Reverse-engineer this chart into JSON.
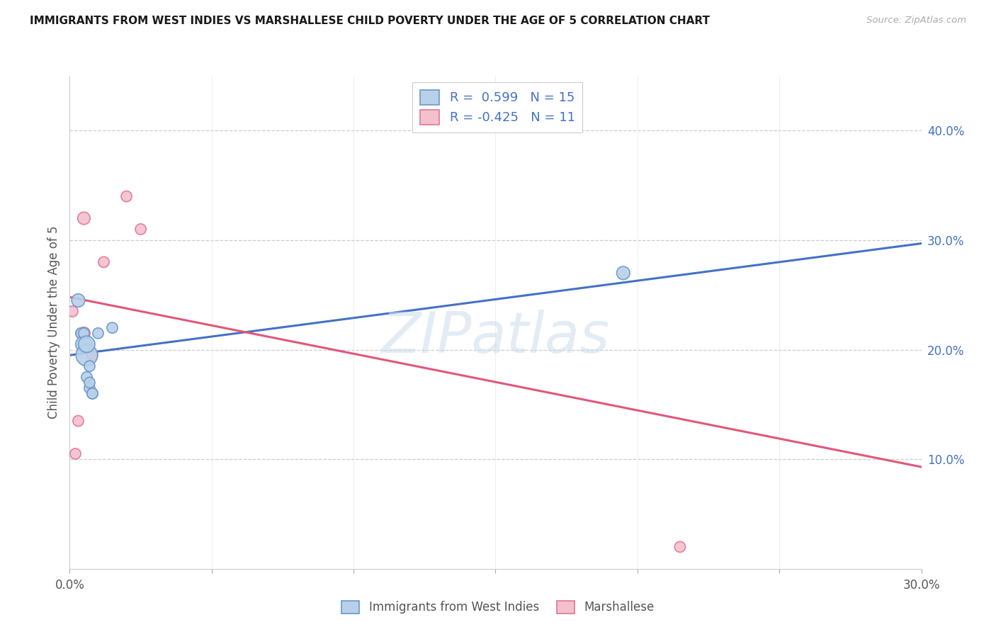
{
  "title": "IMMIGRANTS FROM WEST INDIES VS MARSHALLESE CHILD POVERTY UNDER THE AGE OF 5 CORRELATION CHART",
  "source": "Source: ZipAtlas.com",
  "ylabel": "Child Poverty Under the Age of 5",
  "xlim": [
    0.0,
    0.3
  ],
  "ylim": [
    0.0,
    0.45
  ],
  "xticks": [
    0.0,
    0.05,
    0.1,
    0.15,
    0.2,
    0.25,
    0.3
  ],
  "yticks_right": [
    0.1,
    0.2,
    0.3,
    0.4
  ],
  "ytick_right_labels": [
    "10.0%",
    "20.0%",
    "30.0%",
    "40.0%"
  ],
  "blue_R": "0.599",
  "blue_N": "15",
  "pink_R": "-0.425",
  "pink_N": "11",
  "blue_face_color": "#b8d0e8",
  "blue_edge_color": "#6699cc",
  "pink_face_color": "#f4c0cc",
  "pink_edge_color": "#dd7799",
  "blue_line_color": "#4472c4",
  "pink_line_color": "#e05878",
  "text_blue_color": "#4472c4",
  "legend_label_blue": "Immigrants from West Indies",
  "legend_label_pink": "Marshallese",
  "watermark": "ZIPatlas",
  "blue_points_x": [
    0.003,
    0.004,
    0.005,
    0.005,
    0.006,
    0.006,
    0.006,
    0.007,
    0.007,
    0.007,
    0.008,
    0.008,
    0.01,
    0.015,
    0.195
  ],
  "blue_points_y": [
    0.245,
    0.215,
    0.205,
    0.215,
    0.195,
    0.205,
    0.175,
    0.185,
    0.165,
    0.17,
    0.16,
    0.16,
    0.215,
    0.22,
    0.27
  ],
  "blue_sizes": [
    180,
    120,
    280,
    120,
    480,
    280,
    120,
    120,
    120,
    120,
    120,
    120,
    120,
    120,
    180
  ],
  "pink_points_x": [
    0.001,
    0.002,
    0.003,
    0.004,
    0.005,
    0.005,
    0.008,
    0.012,
    0.02,
    0.025,
    0.215
  ],
  "pink_points_y": [
    0.235,
    0.105,
    0.135,
    0.215,
    0.32,
    0.215,
    0.195,
    0.28,
    0.34,
    0.31,
    0.02
  ],
  "pink_sizes": [
    120,
    120,
    120,
    120,
    160,
    160,
    120,
    120,
    120,
    120,
    120
  ],
  "blue_line_x": [
    0.0,
    0.3
  ],
  "blue_line_y": [
    0.195,
    0.297
  ],
  "pink_line_x": [
    0.0,
    0.3
  ],
  "pink_line_y": [
    0.248,
    0.093
  ]
}
